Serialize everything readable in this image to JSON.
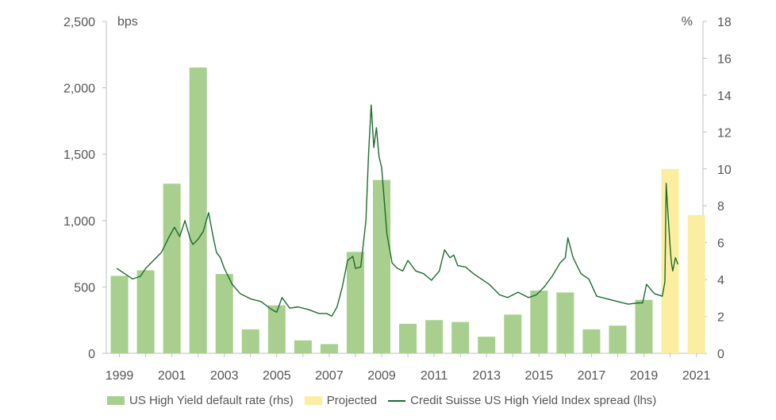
{
  "chart_data": {
    "type": "bar",
    "left_axis_unit": "bps",
    "right_axis_unit": "%",
    "left_ylim": [
      0,
      2500
    ],
    "right_ylim": [
      0,
      18
    ],
    "left_ticks": [
      "0",
      "500",
      "1,000",
      "1,500",
      "2,000",
      "2,500"
    ],
    "right_ticks": [
      "0",
      "2",
      "4",
      "6",
      "8",
      "10",
      "12",
      "14",
      "16",
      "18"
    ],
    "x_ticks": [
      "1999",
      "2001",
      "2003",
      "2005",
      "2007",
      "2009",
      "2011",
      "2013",
      "2015",
      "2017",
      "2019",
      "2021"
    ],
    "grid": false,
    "legend_position": "bottom",
    "series": [
      {
        "name": "US High Yield default rate (rhs)",
        "axis": "right",
        "color": "#a8cf8e",
        "x": [
          1999,
          2000,
          2001,
          2002,
          2003,
          2004,
          2005,
          2006,
          2007,
          2008,
          2009,
          2010,
          2011,
          2012,
          2013,
          2014,
          2015,
          2016,
          2017,
          2018,
          2019
        ],
        "values": [
          4.2,
          4.5,
          9.2,
          15.5,
          4.3,
          1.3,
          2.6,
          0.7,
          0.5,
          5.5,
          9.4,
          1.6,
          1.8,
          1.7,
          0.9,
          2.1,
          3.4,
          3.3,
          1.3,
          1.5,
          2.9
        ]
      },
      {
        "name": "Projected",
        "axis": "right",
        "color": "#fbeea0",
        "x": [
          2020,
          2021
        ],
        "values": [
          10.0,
          7.5
        ]
      },
      {
        "name": "Credit Suisse US High Yield Index spread (lhs)",
        "axis": "left",
        "type": "line",
        "color": "#1b6b2f",
        "x": [
          1998.9,
          1999.2,
          1999.5,
          1999.8,
          2000.0,
          2000.3,
          2000.6,
          2000.9,
          2001.1,
          2001.3,
          2001.5,
          2001.7,
          2001.8,
          2002.0,
          2002.2,
          2002.4,
          2002.55,
          2002.7,
          2002.85,
          2003.0,
          2003.3,
          2003.6,
          2004.0,
          2004.4,
          2004.8,
          2005.0,
          2005.2,
          2005.5,
          2005.8,
          2006.2,
          2006.6,
          2006.9,
          2007.1,
          2007.3,
          2007.5,
          2007.7,
          2007.9,
          2008.0,
          2008.2,
          2008.4,
          2008.5,
          2008.6,
          2008.7,
          2008.8,
          2008.9,
          2009.0,
          2009.2,
          2009.4,
          2009.6,
          2009.8,
          2010.0,
          2010.3,
          2010.6,
          2010.9,
          2011.2,
          2011.4,
          2011.6,
          2011.75,
          2011.9,
          2012.2,
          2012.5,
          2012.8,
          2013.1,
          2013.5,
          2013.8,
          2014.2,
          2014.6,
          2014.9,
          2015.2,
          2015.5,
          2015.8,
          2016.0,
          2016.1,
          2016.3,
          2016.6,
          2016.9,
          2017.2,
          2017.6,
          2018.0,
          2018.4,
          2018.8,
          2018.95,
          2019.1,
          2019.4,
          2019.7,
          2019.8,
          2019.85,
          2019.92,
          2020.0,
          2020.05,
          2020.1,
          2020.2,
          2020.3
        ],
        "values": [
          640,
          600,
          560,
          580,
          640,
          700,
          760,
          880,
          950,
          880,
          1000,
          860,
          820,
          860,
          920,
          1060,
          900,
          760,
          720,
          640,
          520,
          450,
          410,
          390,
          330,
          310,
          420,
          340,
          350,
          330,
          300,
          300,
          280,
          350,
          500,
          700,
          730,
          640,
          650,
          1000,
          1500,
          1870,
          1550,
          1700,
          1480,
          1400,
          900,
          680,
          640,
          620,
          700,
          620,
          600,
          550,
          620,
          780,
          720,
          740,
          660,
          650,
          600,
          560,
          520,
          440,
          420,
          460,
          420,
          440,
          500,
          580,
          680,
          720,
          870,
          720,
          600,
          560,
          430,
          410,
          390,
          370,
          380,
          380,
          520,
          450,
          430,
          540,
          1280,
          1050,
          800,
          680,
          620,
          720,
          670
        ]
      }
    ]
  }
}
